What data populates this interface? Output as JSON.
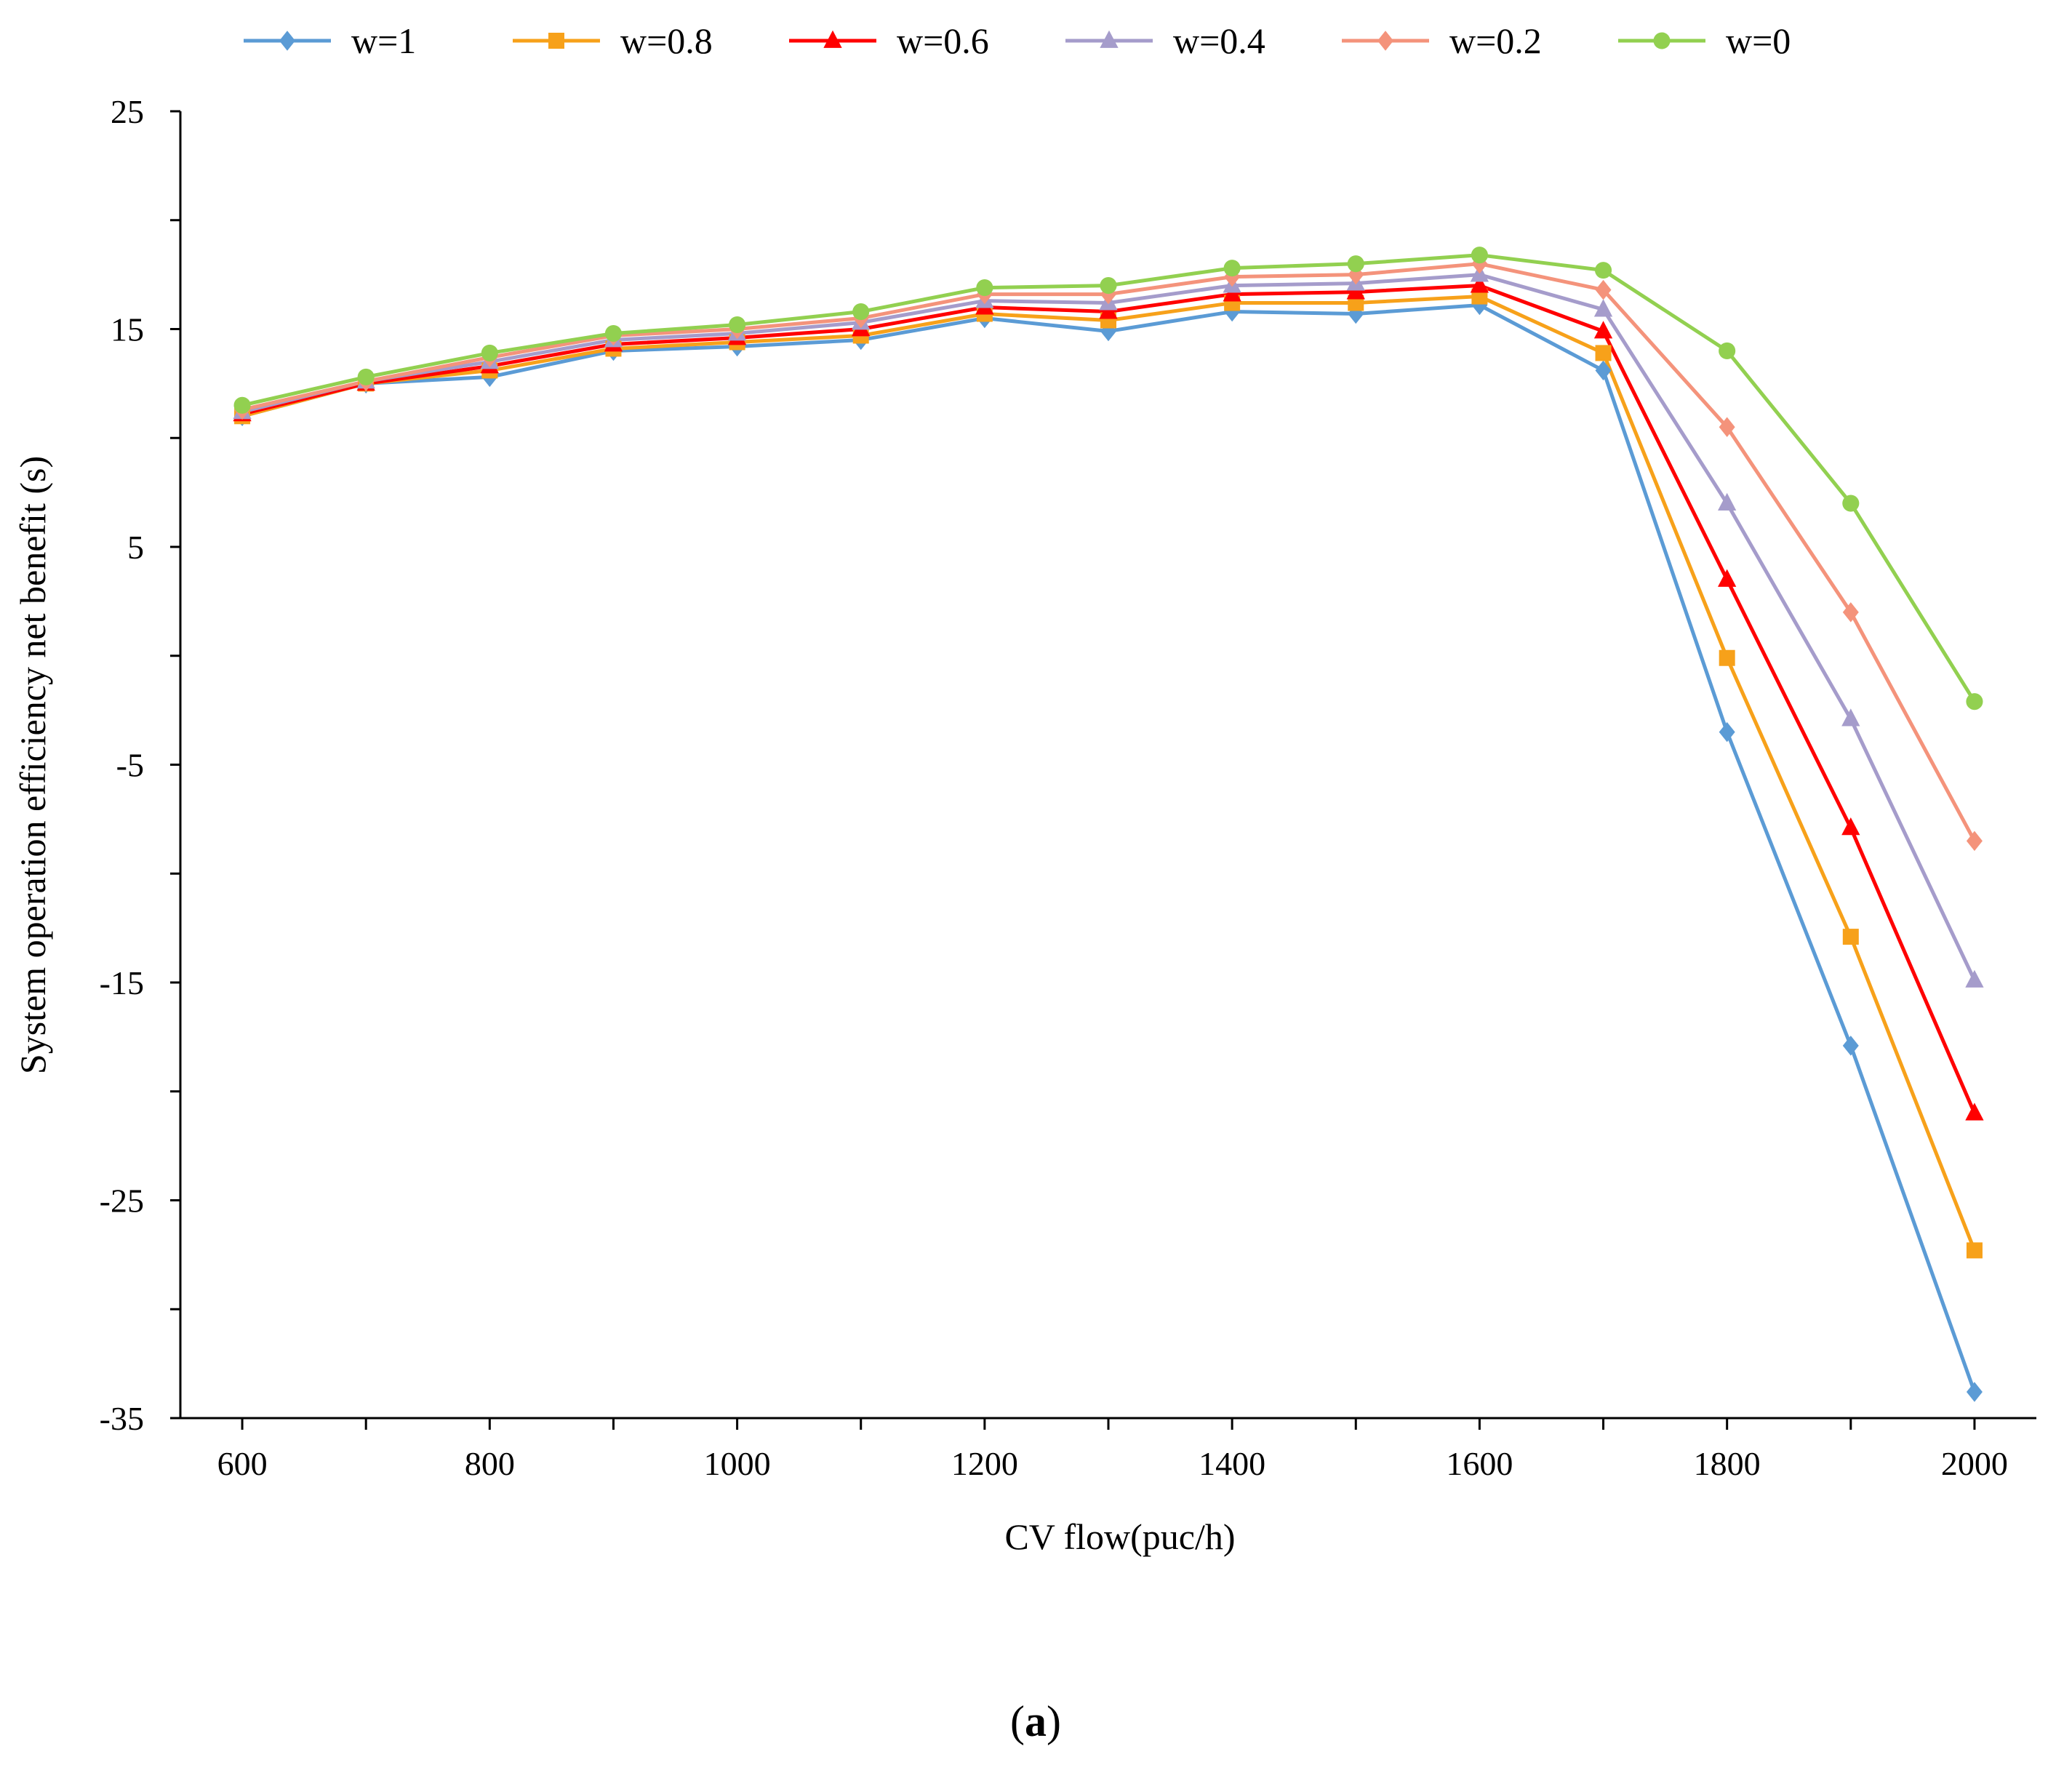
{
  "chart_data": {
    "type": "line",
    "title": "",
    "xlabel": "CV flow(puc/h)",
    "ylabel": "System operation efficiency net benefit (s)",
    "xlim": [
      550,
      2050
    ],
    "ylim": [
      -35,
      25
    ],
    "x_ticks": [
      600,
      800,
      1000,
      1200,
      1400,
      1600,
      1800,
      2000
    ],
    "y_ticks": [
      25,
      15,
      5,
      -5,
      -15,
      -25,
      -35
    ],
    "legend_position": "top",
    "grid": false,
    "x": [
      600,
      700,
      800,
      900,
      1000,
      1100,
      1200,
      1300,
      1400,
      1500,
      1600,
      1700,
      1800,
      1900,
      2000
    ],
    "series": [
      {
        "name": "w=1",
        "color": "#5B9BD5",
        "marker": "diamond",
        "values": [
          11.0,
          12.5,
          12.8,
          14.0,
          14.2,
          14.5,
          15.5,
          14.9,
          15.8,
          15.7,
          16.1,
          13.1,
          -3.5,
          -17.9,
          -33.8
        ]
      },
      {
        "name": "w=0.8",
        "color": "#F7A11A",
        "marker": "square",
        "values": [
          11.0,
          12.5,
          13.1,
          14.1,
          14.4,
          14.7,
          15.7,
          15.4,
          16.2,
          16.2,
          16.5,
          13.9,
          -0.1,
          -12.9,
          -27.3
        ]
      },
      {
        "name": "w=0.6",
        "color": "#FF0000",
        "marker": "triangle",
        "values": [
          11.1,
          12.5,
          13.3,
          14.3,
          14.6,
          15.0,
          16.0,
          15.8,
          16.6,
          16.7,
          17.0,
          14.9,
          3.5,
          -7.9,
          -21.0
        ]
      },
      {
        "name": "w=0.4",
        "color": "#A59CCB",
        "marker": "triangle",
        "values": [
          11.2,
          12.6,
          13.5,
          14.5,
          14.8,
          15.3,
          16.3,
          16.2,
          17.0,
          17.1,
          17.5,
          15.9,
          7.0,
          -2.9,
          -14.9
        ]
      },
      {
        "name": "w=0.2",
        "color": "#F4937B",
        "marker": "diamond",
        "values": [
          11.3,
          12.6,
          13.7,
          14.7,
          15.0,
          15.5,
          16.6,
          16.6,
          17.4,
          17.5,
          18.0,
          16.8,
          10.5,
          2.0,
          -8.5
        ]
      },
      {
        "name": "w=0",
        "color": "#92D050",
        "marker": "circle",
        "values": [
          11.5,
          12.8,
          13.9,
          14.8,
          15.2,
          15.8,
          16.9,
          17.0,
          17.8,
          18.0,
          18.4,
          17.7,
          14.0,
          7.0,
          -2.1
        ]
      }
    ]
  },
  "caption": {
    "open": "(",
    "letter": "a",
    "close": ")"
  }
}
